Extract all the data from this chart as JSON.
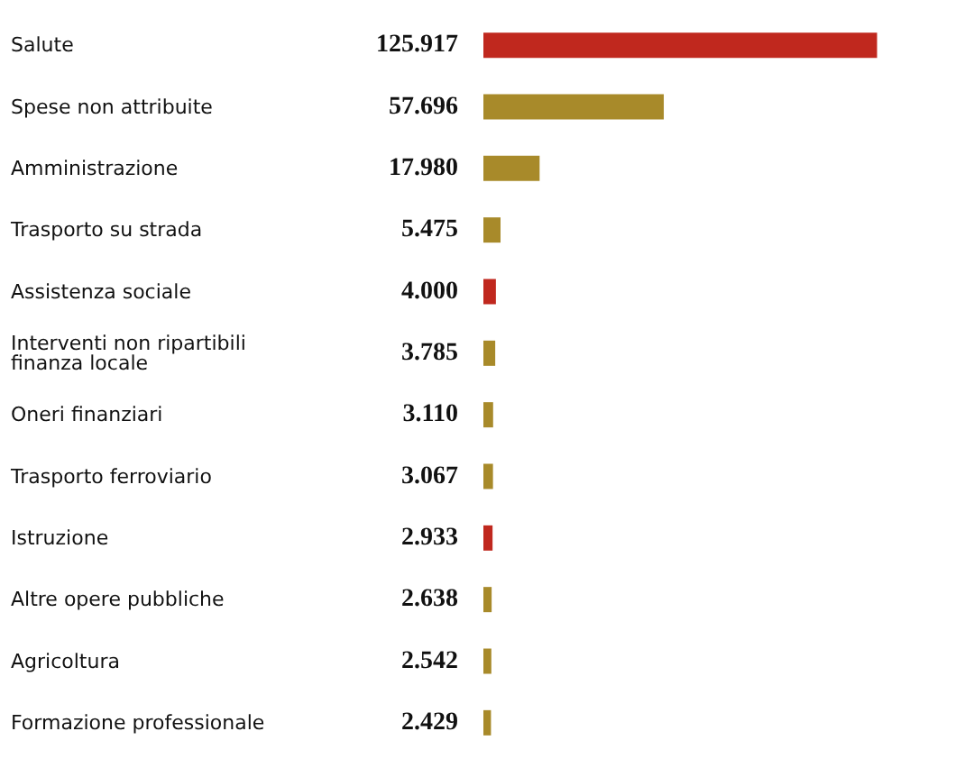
{
  "chart_data": {
    "type": "bar",
    "orientation": "horizontal",
    "categories": [
      "Salute",
      "Spese non attribuite",
      "Amministrazione",
      "Trasporto su strada",
      "Assistenza sociale",
      "Interventi non ripartibili finanza locale",
      "Oneri finanziari",
      "Trasporto ferroviario",
      "Istruzione",
      "Altre opere pubbliche",
      "Agricoltura",
      "Formazione professionale"
    ],
    "values": [
      125917,
      57696,
      17980,
      5475,
      4000,
      3785,
      3110,
      3067,
      2933,
      2638,
      2542,
      2429
    ],
    "value_labels": [
      "125.917",
      "57.696",
      "17.980",
      "5.475",
      "4.000",
      "3.785",
      "3.110",
      "3.067",
      "2.933",
      "2.638",
      "2.542",
      "2.429"
    ],
    "colors": [
      "#c0281e",
      "#a88a2a",
      "#a88a2a",
      "#a88a2a",
      "#c0281e",
      "#a88a2a",
      "#a88a2a",
      "#a88a2a",
      "#c0281e",
      "#a88a2a",
      "#a88a2a",
      "#a88a2a"
    ]
  }
}
